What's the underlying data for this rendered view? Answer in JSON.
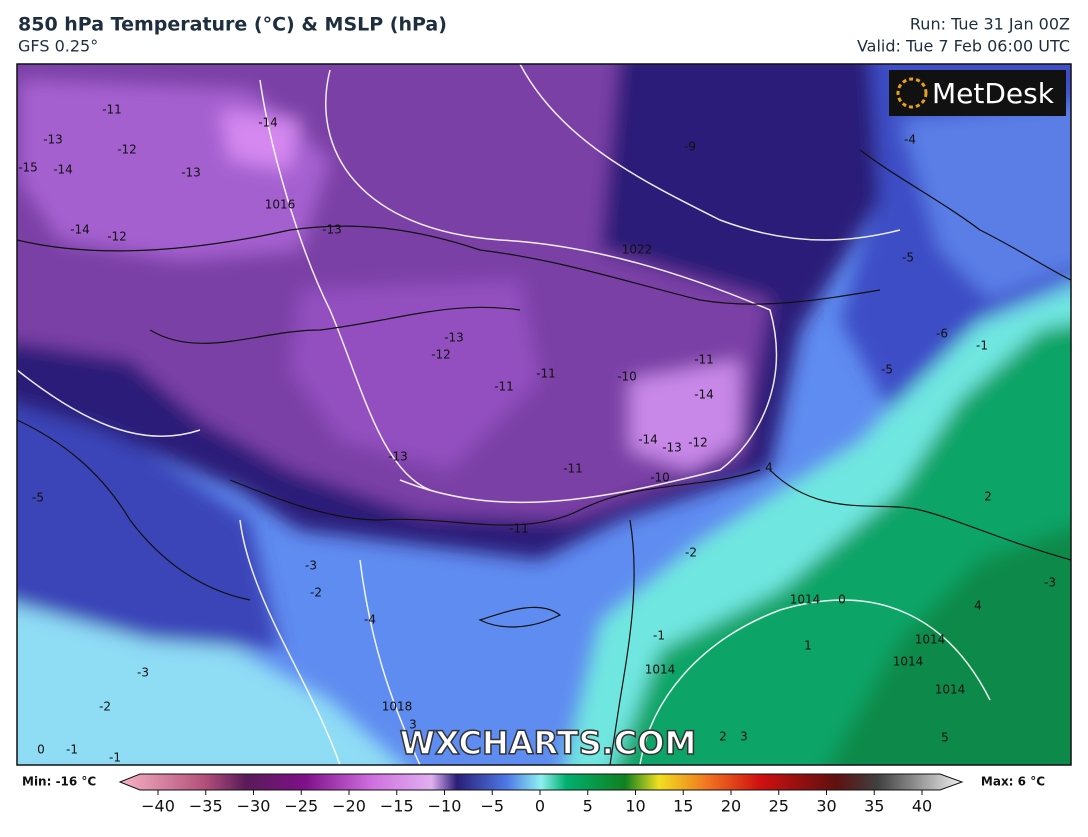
{
  "header": {
    "title": "850 hPa Temperature (°C) & MSLP (hPa)",
    "subtitle": "GFS 0.25°",
    "run": "Run: Tue 31 Jan 00Z",
    "valid": "Valid: Tue 7 Feb 06:00 UTC"
  },
  "logo": "MetDesk",
  "watermark": "WXCHARTS.COM",
  "contour_labels": [
    "-11",
    "-14",
    "-13",
    "-12",
    "-15",
    "-14",
    "-13",
    "-14",
    "-12",
    "-13",
    "1016",
    "1022",
    "-9",
    "-4",
    "-5",
    "-6",
    "-1",
    "-5",
    "-13",
    "-12",
    "-11",
    "-11",
    "-10",
    "-11",
    "-14",
    "-14",
    "-13",
    "-12",
    "-11",
    "-13",
    "-10",
    "-11",
    "-2",
    "-3",
    "-2",
    "-4",
    "-5",
    "-3",
    "-2",
    "-1",
    "0",
    "-1",
    "-1",
    "0",
    "1",
    "1014",
    "1014",
    "1014",
    "1014",
    "1014",
    "1018",
    "3",
    "4",
    "5",
    "2",
    "3",
    "4",
    "-3",
    "2"
  ],
  "colorbar": {
    "min": "Min: -16 °C",
    "max": "Max: 6 °C",
    "ticks": [
      "−40",
      "−35",
      "−30",
      "−25",
      "−20",
      "−15",
      "−10",
      "−5",
      "0",
      "5",
      "10",
      "15",
      "20",
      "25",
      "30",
      "35",
      "40"
    ]
  }
}
